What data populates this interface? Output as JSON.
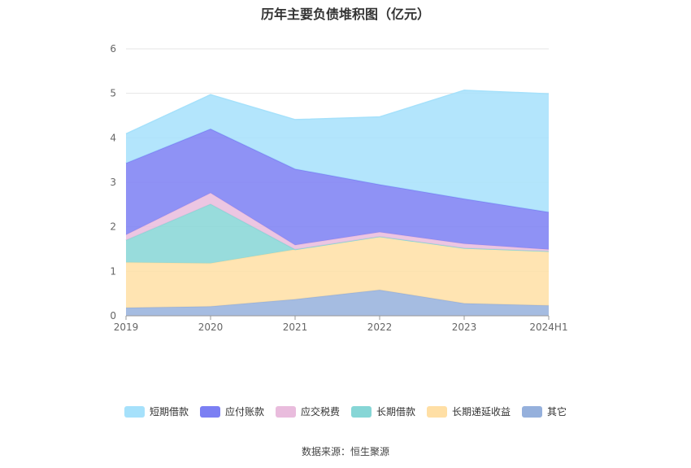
{
  "title": "历年主要负债堆积图（亿元）",
  "source": "数据来源：恒生聚源",
  "colors": {
    "短期借款": "#a6e1fb",
    "应付账款": "#7b7ff3",
    "应交税费": "#e9bcdd",
    "长期借款": "#86d6d6",
    "长期递延收益": "#ffdfa5",
    "其它": "#95b0dc"
  },
  "chart_data": {
    "type": "area",
    "stacked": true,
    "title": "历年主要负债堆积图（亿元）",
    "xlabel": "",
    "ylabel": "",
    "categories": [
      "2019",
      "2020",
      "2021",
      "2022",
      "2023",
      "2024H1"
    ],
    "ylim": [
      0,
      6
    ],
    "yticks": [
      0,
      1,
      2,
      3,
      4,
      5,
      6
    ],
    "grid": true,
    "legend_position": "bottom",
    "series": [
      {
        "name": "其它",
        "values": [
          0.18,
          0.21,
          0.37,
          0.58,
          0.28,
          0.23
        ]
      },
      {
        "name": "长期递延收益",
        "values": [
          1.02,
          0.97,
          1.12,
          1.2,
          1.24,
          1.22
        ]
      },
      {
        "name": "长期借款",
        "values": [
          0.5,
          1.33,
          0.0,
          0.0,
          0.0,
          0.0
        ]
      },
      {
        "name": "应交税费",
        "values": [
          0.12,
          0.25,
          0.1,
          0.1,
          0.1,
          0.04
        ]
      },
      {
        "name": "应付账款",
        "values": [
          1.61,
          1.44,
          1.71,
          1.07,
          1.01,
          0.84
        ]
      },
      {
        "name": "短期借款",
        "values": [
          0.66,
          0.77,
          1.11,
          1.52,
          2.44,
          2.66
        ]
      }
    ],
    "legend_order": [
      "短期借款",
      "应付账款",
      "应交税费",
      "长期借款",
      "长期递延收益",
      "其它"
    ]
  }
}
